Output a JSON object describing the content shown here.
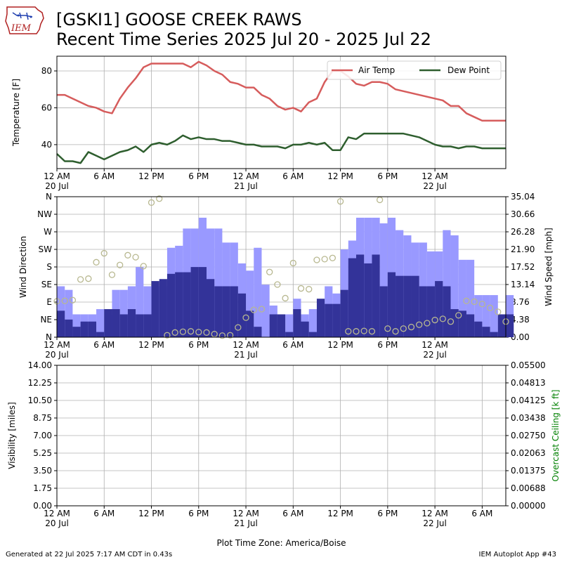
{
  "header": {
    "title_line1": "[GSKI1] GOOSE CREEK RAWS",
    "title_line2": "Recent Time Series 2025 Jul 20 - 2025 Jul 22",
    "logo_text": "IEM"
  },
  "footer": {
    "generated": "Generated at 22 Jul 2025 7:17 AM CDT in 0.43s",
    "app": "IEM Autoplot App #43"
  },
  "chart_data": [
    {
      "type": "line",
      "ylabel": "Temperature [F]",
      "xlim": [
        0,
        57
      ],
      "ylim": [
        27,
        88
      ],
      "yticks": [
        40,
        60,
        80
      ],
      "x_tick_labels": [
        [
          "12 AM",
          "20 Jul"
        ],
        [
          "6 AM",
          ""
        ],
        [
          "12 PM",
          ""
        ],
        [
          "6 PM",
          ""
        ],
        [
          "12 AM",
          "21 Jul"
        ],
        [
          "6 AM",
          ""
        ],
        [
          "12 PM",
          ""
        ],
        [
          "6 PM",
          ""
        ],
        [
          "12 AM",
          "22 Jul"
        ]
      ],
      "legend": [
        "Air Temp",
        "Dew Point"
      ],
      "legend_position": "top-right",
      "grid": true,
      "colors": {
        "air": "#d65c5c",
        "dew": "#2e5e2e"
      },
      "series": [
        {
          "name": "Air Temp",
          "x": [
            0,
            1,
            2,
            3,
            4,
            5,
            6,
            7,
            8,
            9,
            10,
            11,
            12,
            13,
            14,
            15,
            16,
            17,
            18,
            19,
            20,
            21,
            22,
            23,
            24,
            25,
            26,
            27,
            28,
            29,
            30,
            31,
            32,
            33,
            34,
            35,
            36,
            37,
            38,
            39,
            40,
            41,
            42,
            43,
            44,
            45,
            46,
            47,
            48,
            49,
            50,
            51,
            52,
            53,
            54,
            55,
            56,
            57
          ],
          "values": [
            67,
            67,
            65,
            63,
            61,
            60,
            58,
            57,
            65,
            71,
            76,
            82,
            84,
            84,
            84,
            84,
            84,
            82,
            85,
            83,
            80,
            78,
            74,
            73,
            71,
            71,
            67,
            65,
            61,
            59,
            60,
            58,
            63,
            65,
            74,
            80,
            80,
            77,
            73,
            72,
            74,
            74,
            73,
            70,
            69,
            68,
            67,
            66,
            65,
            64,
            61,
            61,
            57,
            55,
            53,
            53,
            53,
            53
          ]
        },
        {
          "name": "Dew Point",
          "x": [
            0,
            1,
            2,
            3,
            4,
            5,
            6,
            7,
            8,
            9,
            10,
            11,
            12,
            13,
            14,
            15,
            16,
            17,
            18,
            19,
            20,
            21,
            22,
            23,
            24,
            25,
            26,
            27,
            28,
            29,
            30,
            31,
            32,
            33,
            34,
            35,
            36,
            37,
            38,
            39,
            40,
            41,
            42,
            43,
            44,
            45,
            46,
            47,
            48,
            49,
            50,
            51,
            52,
            53,
            54,
            55,
            56,
            57
          ],
          "values": [
            35,
            31,
            31,
            30,
            36,
            34,
            32,
            34,
            36,
            37,
            39,
            36,
            40,
            41,
            40,
            42,
            45,
            43,
            44,
            43,
            43,
            42,
            42,
            41,
            40,
            40,
            39,
            39,
            39,
            38,
            40,
            40,
            41,
            40,
            41,
            37,
            37,
            44,
            43,
            46,
            46,
            46,
            46,
            46,
            46,
            45,
            44,
            42,
            40,
            39,
            39,
            38,
            39,
            39,
            38,
            38,
            38,
            38
          ]
        }
      ]
    },
    {
      "type": "bar",
      "ylabel": "Wind Direction",
      "y2label": "Wind Speed [mph]",
      "ylim": [
        0,
        360
      ],
      "y_tick_labels": [
        "N",
        "NE",
        "E",
        "SE",
        "S",
        "SW",
        "W",
        "NW",
        "N"
      ],
      "y2lim": [
        0,
        35.04
      ],
      "y2_tick_labels": [
        "0.00",
        "4.38",
        "8.76",
        "13.14",
        "17.52",
        "21.90",
        "26.28",
        "30.66",
        "35.04"
      ],
      "x_tick_labels": [
        [
          "12 AM",
          "20 Jul"
        ],
        [
          "6 AM",
          ""
        ],
        [
          "12 PM",
          ""
        ],
        [
          "6 PM",
          ""
        ],
        [
          "12 AM",
          "21 Jul"
        ],
        [
          "6 AM",
          ""
        ],
        [
          "12 PM",
          ""
        ],
        [
          "6 PM",
          ""
        ],
        [
          "12 AM",
          "22 Jul"
        ]
      ],
      "grid": true,
      "colors": {
        "gust": "#9999ff",
        "speed": "#333399",
        "direction": "#b8b890"
      },
      "series": [
        {
          "name": "Gust",
          "x": [
            0,
            1,
            2,
            3,
            4,
            5,
            6,
            7,
            8,
            9,
            10,
            11,
            12,
            13,
            14,
            15,
            16,
            17,
            18,
            19,
            20,
            21,
            22,
            23,
            24,
            25,
            26,
            27,
            28,
            29,
            30,
            31,
            32,
            33,
            34,
            35,
            36,
            37,
            38,
            39,
            40,
            41,
            42,
            43,
            44,
            45,
            46,
            47,
            48,
            49,
            50,
            51,
            52,
            53,
            54,
            55,
            56,
            57
          ],
          "values": [
            12.7,
            11.8,
            5.7,
            5.7,
            5.7,
            7.0,
            5.7,
            11.8,
            11.8,
            12.7,
            17.5,
            12.7,
            12.7,
            12.7,
            22.3,
            22.8,
            27.1,
            27.1,
            29.8,
            27.1,
            27.1,
            23.6,
            23.6,
            18.4,
            16.6,
            22.3,
            13.1,
            7.9,
            0,
            5.7,
            9.6,
            5.7,
            7.0,
            7.0,
            12.7,
            10.9,
            21.9,
            24.1,
            29.8,
            29.8,
            29.8,
            28.4,
            29.8,
            26.7,
            25.4,
            23.6,
            23.6,
            21.4,
            21.4,
            26.7,
            25.4,
            19.3,
            19.3,
            10.5,
            10.5,
            10.5,
            5.0,
            10.5
          ]
        },
        {
          "name": "Speed",
          "x": [
            0,
            1,
            2,
            3,
            4,
            5,
            6,
            7,
            8,
            9,
            10,
            11,
            12,
            13,
            14,
            15,
            16,
            17,
            18,
            19,
            20,
            21,
            22,
            23,
            24,
            25,
            26,
            27,
            28,
            29,
            30,
            31,
            32,
            33,
            34,
            35,
            36,
            37,
            38,
            39,
            40,
            41,
            42,
            43,
            44,
            45,
            46,
            47,
            48,
            49,
            50,
            51,
            52,
            53,
            54,
            55,
            56,
            57
          ],
          "values": [
            6.6,
            4.4,
            2.6,
            3.9,
            3.9,
            1.3,
            7.0,
            7.0,
            5.7,
            7.0,
            5.7,
            5.7,
            14.0,
            14.5,
            15.8,
            16.2,
            16.2,
            17.5,
            17.5,
            14.5,
            12.7,
            12.7,
            12.7,
            10.9,
            6.6,
            2.6,
            0,
            5.7,
            5.7,
            1.3,
            7.0,
            3.9,
            1.3,
            9.6,
            8.3,
            8.3,
            11.8,
            19.7,
            20.6,
            18.4,
            20.6,
            12.7,
            16.2,
            15.3,
            15.3,
            15.3,
            12.7,
            12.7,
            14.0,
            12.7,
            7.0,
            6.6,
            5.7,
            3.9,
            2.6,
            1.3,
            5.7,
            5.7
          ]
        },
        {
          "name": "Direction",
          "x": [
            0,
            1,
            2,
            3,
            4,
            5,
            6,
            7,
            8,
            9,
            10,
            11,
            12,
            13,
            14,
            15,
            16,
            17,
            18,
            19,
            20,
            21,
            22,
            23,
            24,
            25,
            26,
            27,
            28,
            29,
            30,
            31,
            32,
            33,
            34,
            35,
            36,
            37,
            38,
            39,
            40,
            41,
            42,
            43,
            44,
            45,
            46,
            47,
            48,
            49,
            50,
            51,
            52,
            53,
            54,
            55,
            56,
            57
          ],
          "values": [
            92,
            93,
            95,
            148,
            150,
            192,
            215,
            160,
            185,
            210,
            205,
            182,
            345,
            355,
            5,
            12,
            14,
            15,
            13,
            12,
            8,
            4,
            5,
            25,
            50,
            70,
            72,
            167,
            135,
            100,
            190,
            125,
            123,
            198,
            200,
            203,
            348,
            15,
            15,
            16,
            15,
            352,
            22,
            15,
            22,
            26,
            32,
            36,
            44,
            47,
            40,
            56,
            93,
            91,
            85,
            75,
            65,
            40
          ]
        }
      ]
    },
    {
      "type": "line",
      "ylabel": "Visibility [miles]",
      "y2label": "Overcast Ceiling [k ft]",
      "ylim": [
        0,
        14
      ],
      "y_tick_labels": [
        "0.00",
        "1.75",
        "3.50",
        "5.25",
        "7.00",
        "8.75",
        "10.50",
        "12.25",
        "14.00"
      ],
      "y2lim": [
        0,
        0.055
      ],
      "y2_tick_labels": [
        "0.00000",
        "0.00688",
        "0.01375",
        "0.02063",
        "0.02750",
        "0.03438",
        "0.04125",
        "0.04813",
        "0.05500"
      ],
      "x_tick_labels": [
        [
          "12 AM",
          "20 Jul"
        ],
        [
          "6 AM",
          ""
        ],
        [
          "12 PM",
          ""
        ],
        [
          "6 PM",
          ""
        ],
        [
          "12 AM",
          "21 Jul"
        ],
        [
          "6 AM",
          ""
        ],
        [
          "12 PM",
          ""
        ],
        [
          "6 PM",
          ""
        ],
        [
          "12 AM",
          "22 Jul"
        ],
        [
          "6 AM",
          ""
        ]
      ],
      "xlabel": "Plot Time Zone: America/Boise",
      "grid": true,
      "colors": {
        "y2label": "#008000"
      },
      "series": []
    }
  ]
}
